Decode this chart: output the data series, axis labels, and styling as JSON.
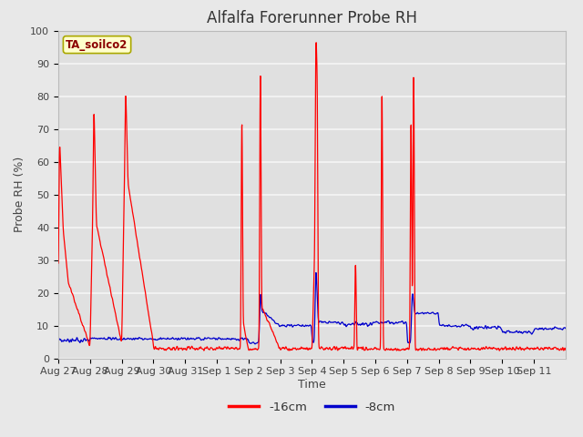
{
  "title": "Alfalfa Forerunner Probe RH",
  "ylabel": "Probe RH (%)",
  "xlabel": "Time",
  "subtitle_box": "TA_soilco2",
  "ylim": [
    0,
    100
  ],
  "tick_labels": [
    "Aug 27",
    "Aug 28",
    "Aug 29",
    "Aug 30",
    "Aug 31",
    "Sep 1",
    "Sep 2",
    "Sep 3",
    "Sep 4",
    "Sep 5",
    "Sep 6",
    "Sep 7",
    "Sep 8",
    "Sep 9",
    "Sep 10",
    "Sep 11"
  ],
  "legend_labels": [
    "-16cm",
    "-8cm"
  ],
  "line_colors": [
    "#ff0000",
    "#0000cc"
  ],
  "fig_color": "#e8e8e8",
  "plot_bg_color": "#e0e0e0",
  "grid_color": "#f5f5f5",
  "title_fontsize": 12,
  "label_fontsize": 9,
  "tick_fontsize": 8,
  "n_days": 16
}
